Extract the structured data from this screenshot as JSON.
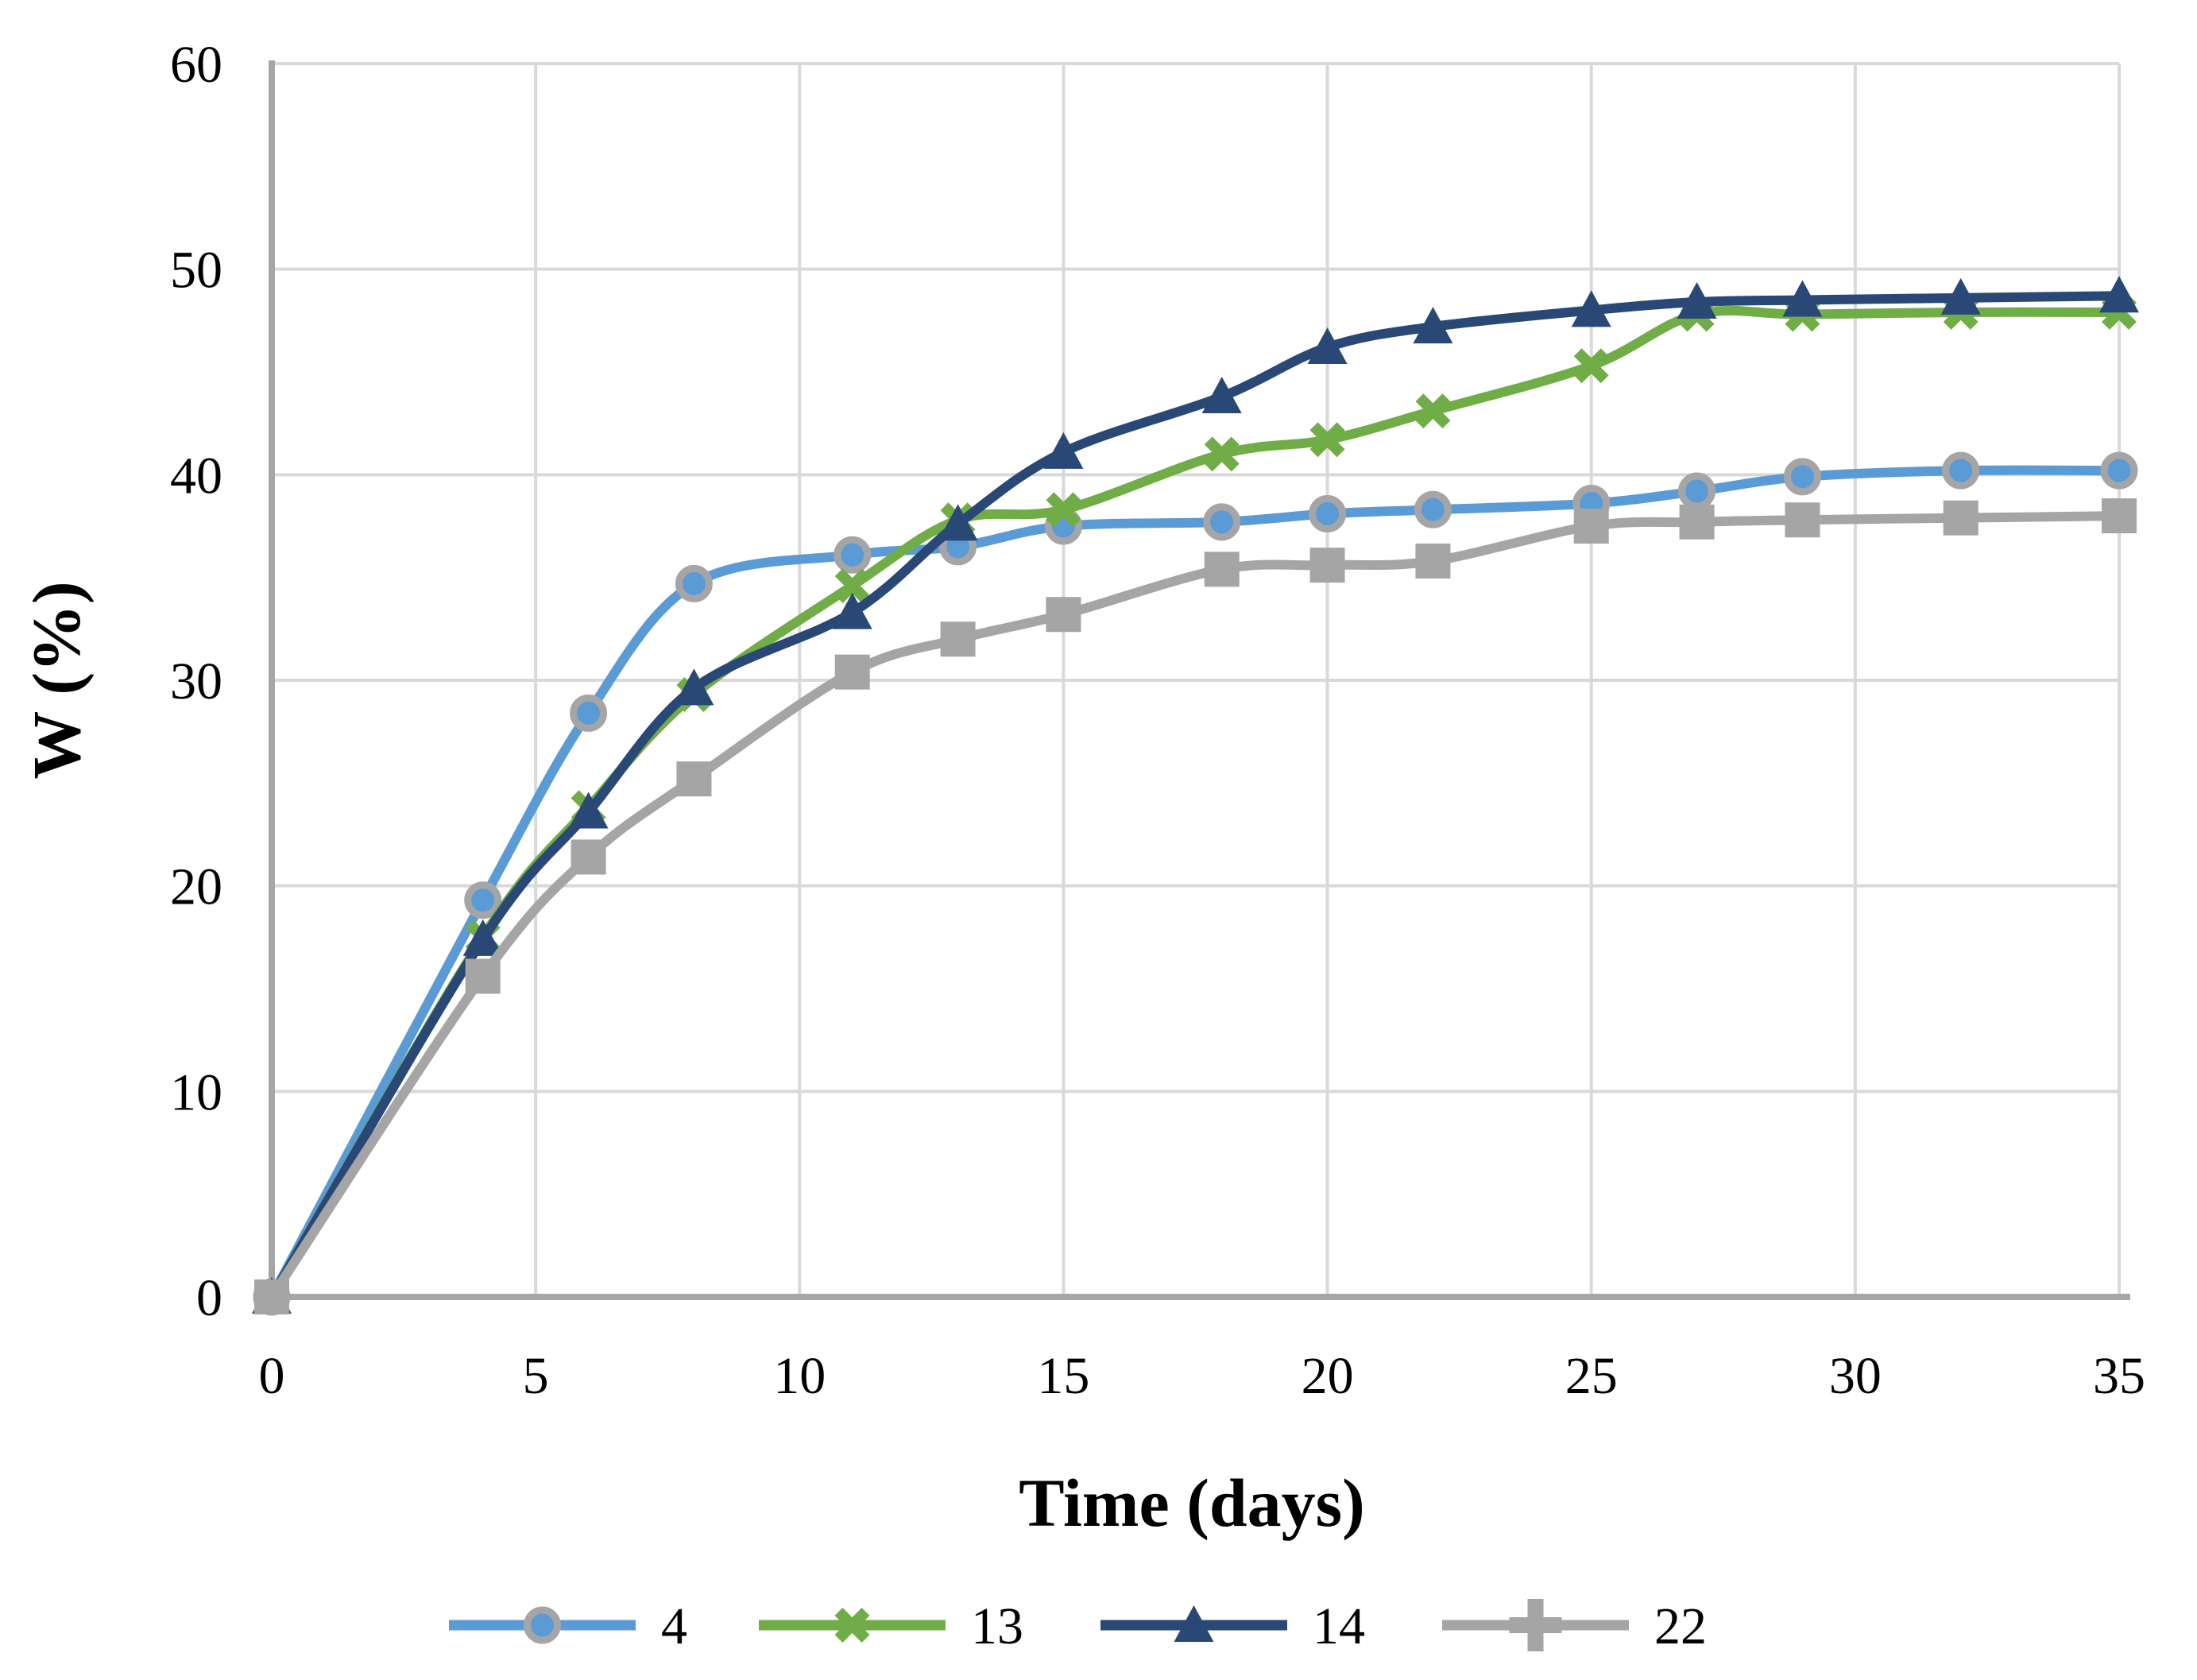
{
  "chart_data": {
    "type": "line",
    "title": "",
    "xlabel": "Time (days)",
    "ylabel": "W (%)",
    "x": [
      0,
      4,
      6,
      8,
      11,
      13,
      15,
      18,
      20,
      22,
      25,
      27,
      29,
      32,
      35
    ],
    "xlim": [
      0,
      35
    ],
    "ylim": [
      0,
      60
    ],
    "x_ticks": [
      0,
      5,
      10,
      15,
      20,
      25,
      30,
      35
    ],
    "y_ticks": [
      0,
      10,
      20,
      30,
      40,
      50,
      60
    ],
    "grid": true,
    "smoothed_lines": true,
    "legend_position": "bottom",
    "gridline_color": "#D9D9D9",
    "axis_color": "#A6A6A6",
    "series": [
      {
        "name": "4",
        "color": "#5B9BD5",
        "marker": "circle",
        "marker_outline": "#A5A5A5",
        "values": [
          0,
          19.3,
          28.4,
          34.7,
          36.1,
          36.5,
          37.5,
          37.7,
          38.1,
          38.3,
          38.6,
          39.2,
          39.9,
          40.2,
          40.2
        ]
      },
      {
        "name": "13",
        "color": "#70AD47",
        "marker": "x",
        "values": [
          0,
          17.5,
          23.8,
          29.3,
          34.6,
          37.8,
          38.3,
          41.0,
          41.7,
          43.1,
          45.3,
          47.8,
          47.8,
          47.9,
          47.9
        ]
      },
      {
        "name": "14",
        "color": "#2A4876",
        "marker": "triangle",
        "values": [
          0,
          17.4,
          23.6,
          29.6,
          33.3,
          37.6,
          41.1,
          43.8,
          46.2,
          47.2,
          48.0,
          48.4,
          48.5,
          48.6,
          48.7
        ]
      },
      {
        "name": "22",
        "color": "#A5A5A5",
        "marker": "square",
        "legend_marker": "plus",
        "values": [
          0,
          15.6,
          21.4,
          25.2,
          30.4,
          32.0,
          33.2,
          35.4,
          35.6,
          35.8,
          37.5,
          37.7,
          37.8,
          37.9,
          38.0
        ]
      }
    ]
  }
}
